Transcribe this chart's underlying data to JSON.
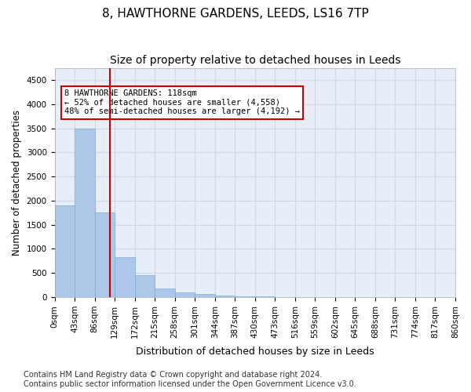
{
  "title": "8, HAWTHORNE GARDENS, LEEDS, LS16 7TP",
  "subtitle": "Size of property relative to detached houses in Leeds",
  "xlabel": "Distribution of detached houses by size in Leeds",
  "ylabel": "Number of detached properties",
  "bin_labels": [
    "0sqm",
    "43sqm",
    "86sqm",
    "129sqm",
    "172sqm",
    "215sqm",
    "258sqm",
    "301sqm",
    "344sqm",
    "387sqm",
    "430sqm",
    "473sqm",
    "516sqm",
    "559sqm",
    "602sqm",
    "645sqm",
    "688sqm",
    "731sqm",
    "774sqm",
    "817sqm",
    "860sqm"
  ],
  "bar_values": [
    1900,
    3500,
    1750,
    830,
    450,
    175,
    105,
    65,
    40,
    20,
    10,
    5,
    2,
    1,
    0,
    0,
    0,
    0,
    0,
    0
  ],
  "bar_color": "#aec6e8",
  "bar_edgecolor": "#7aadd4",
  "property_size_sqm": 118,
  "property_bin_index": 2,
  "annotation_text": "8 HAWTHORNE GARDENS: 118sqm\n← 52% of detached houses are smaller (4,558)\n48% of semi-detached houses are larger (4,192) →",
  "annotation_box_color": "#ffffff",
  "annotation_border_color": "#cc0000",
  "vline_color": "#cc0000",
  "vline_x": 2.75,
  "ylim": [
    0,
    4750
  ],
  "yticks": [
    0,
    500,
    1000,
    1500,
    2000,
    2500,
    3000,
    3500,
    4000,
    4500
  ],
  "grid_color": "#d0d8e8",
  "bg_color": "#e8eef8",
  "footer": "Contains HM Land Registry data © Crown copyright and database right 2024.\nContains public sector information licensed under the Open Government Licence v3.0.",
  "title_fontsize": 11,
  "subtitle_fontsize": 10,
  "xlabel_fontsize": 9,
  "ylabel_fontsize": 8.5,
  "tick_fontsize": 7.5,
  "footer_fontsize": 7
}
